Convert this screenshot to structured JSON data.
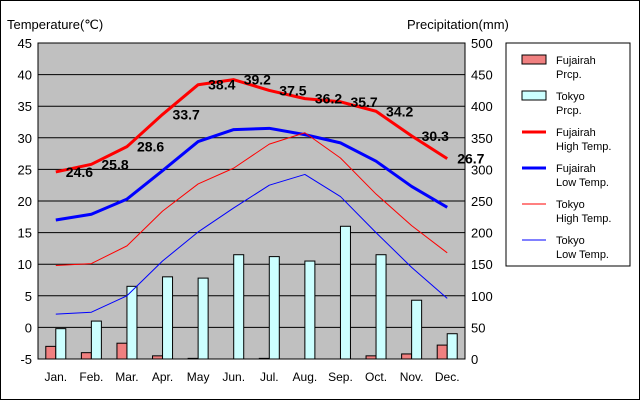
{
  "chart_data": {
    "type": "bar+line",
    "left_axis_title": "Temperature(℃)",
    "right_axis_title": "Precipitation(mm)",
    "categories": [
      "Jan.",
      "Feb.",
      "Mar.",
      "Apr.",
      "May",
      "Jun.",
      "Jul.",
      "Aug.",
      "Sep.",
      "Oct.",
      "Nov.",
      "Dec."
    ],
    "y_left": {
      "min": -5,
      "max": 45,
      "ticks": [
        -5,
        0,
        5,
        10,
        15,
        20,
        25,
        30,
        35,
        40,
        45
      ]
    },
    "y_right": {
      "min": 0,
      "max": 500,
      "ticks": [
        0,
        50,
        100,
        150,
        200,
        250,
        300,
        350,
        400,
        450,
        500
      ]
    },
    "grid": true,
    "legend_position": "right",
    "bars": [
      {
        "name": "Fujairah Prcp.",
        "color": "#f08080",
        "values": [
          20,
          10,
          25,
          5,
          1,
          0,
          1,
          0,
          0,
          5,
          8,
          22
        ]
      },
      {
        "name": "Tokyo Prcp.",
        "color": "#ccffff",
        "values": [
          48,
          60,
          115,
          130,
          128,
          165,
          162,
          155,
          210,
          165,
          93,
          40
        ]
      }
    ],
    "lines": [
      {
        "name": "Fujairah High Temp.",
        "color": "#ff0000",
        "width": 3,
        "values": [
          24.6,
          25.8,
          28.6,
          33.7,
          38.4,
          39.2,
          37.5,
          36.2,
          35.7,
          34.2,
          30.3,
          26.7
        ],
        "labels": true
      },
      {
        "name": "Fujairah Low Temp.",
        "color": "#0000ff",
        "width": 3,
        "values": [
          17.0,
          17.9,
          20.3,
          24.8,
          29.4,
          31.3,
          31.5,
          30.5,
          29.2,
          26.3,
          22.3,
          19.0
        ],
        "labels": false
      },
      {
        "name": "Tokyo High Temp.",
        "color": "#ff0000",
        "width": 1,
        "values": [
          9.8,
          10.1,
          12.9,
          18.4,
          22.7,
          25.2,
          29.0,
          30.8,
          26.8,
          21.1,
          16.1,
          11.8
        ],
        "labels": false
      },
      {
        "name": "Tokyo Low Temp.",
        "color": "#0000ff",
        "width": 1,
        "values": [
          2.1,
          2.4,
          5.0,
          10.5,
          15.1,
          18.9,
          22.5,
          24.2,
          20.7,
          15.0,
          9.5,
          4.6
        ],
        "labels": false
      }
    ],
    "legend": [
      {
        "line1": "Fujairah",
        "line2": "Prcp."
      },
      {
        "line1": "Tokyo",
        "line2": "Prcp."
      },
      {
        "line1": "Fujairah",
        "line2": "High Temp."
      },
      {
        "line1": "Fujairah",
        "line2": "Low Temp."
      },
      {
        "line1": "Tokyo",
        "line2": "High Temp."
      },
      {
        "line1": "Tokyo",
        "line2": "Low Temp."
      }
    ]
  }
}
